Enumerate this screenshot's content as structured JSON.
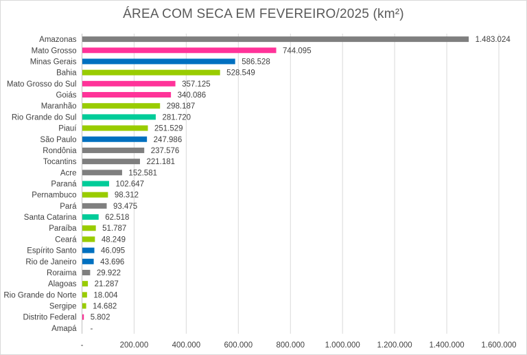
{
  "chart_data": {
    "type": "bar",
    "orientation": "horizontal",
    "title": "ÁREA COM SECA EM FEVEREIRO/2025 (km²)",
    "xlabel": "",
    "ylabel": "",
    "xlim": [
      0,
      1600000
    ],
    "grid": "vertical",
    "legend": "none",
    "x_ticks": [
      0,
      200000,
      400000,
      600000,
      800000,
      1000000,
      1200000,
      1400000,
      1600000
    ],
    "x_tick_labels": [
      "-",
      "200.000",
      "400.000",
      "600.000",
      "800.000",
      "1.000.000",
      "1.200.000",
      "1.400.000",
      "1.600.000"
    ],
    "categories": [
      "Amazonas",
      "Mato Grosso",
      "Minas Gerais",
      "Bahia",
      "Mato Grosso do Sul",
      "Goiás",
      "Maranhão",
      "Rio Grande do Sul",
      "Piauí",
      "São Paulo",
      "Rondônia",
      "Tocantins",
      "Acre",
      "Paraná",
      "Pernambuco",
      "Pará",
      "Santa Catarina",
      "Paraíba",
      "Ceará",
      "Espírito Santo",
      "Rio de Janeiro",
      "Roraima",
      "Alagoas",
      "Rio Grande do Norte",
      "Sergipe",
      "Distrito Federal",
      "Amapá"
    ],
    "values": [
      1483024,
      744095,
      586528,
      528549,
      357125,
      340086,
      298187,
      281720,
      251529,
      247986,
      237576,
      221181,
      152581,
      102647,
      98312,
      93475,
      62518,
      51787,
      48249,
      46095,
      43696,
      29922,
      21287,
      18004,
      14682,
      5802,
      0
    ],
    "data_labels": [
      "1.483.024",
      "744.095",
      "586.528",
      "528.549",
      "357.125",
      "340.086",
      "298.187",
      "281.720",
      "251.529",
      "247.986",
      "237.576",
      "221.181",
      "152.581",
      "102.647",
      "98.312",
      "93.475",
      "62.518",
      "51.787",
      "48.249",
      "46.095",
      "43.696",
      "29.922",
      "21.287",
      "18.004",
      "14.682",
      "5.802",
      "-"
    ],
    "bar_colors": [
      "#7f7f7f",
      "#ff3399",
      "#0070c0",
      "#99cc00",
      "#ff3399",
      "#ff3399",
      "#99cc00",
      "#00cc99",
      "#99cc00",
      "#0070c0",
      "#7f7f7f",
      "#7f7f7f",
      "#7f7f7f",
      "#00cc99",
      "#99cc00",
      "#7f7f7f",
      "#00cc99",
      "#99cc00",
      "#99cc00",
      "#0070c0",
      "#0070c0",
      "#7f7f7f",
      "#99cc00",
      "#99cc00",
      "#99cc00",
      "#ff3399",
      "#7f7f7f"
    ]
  }
}
